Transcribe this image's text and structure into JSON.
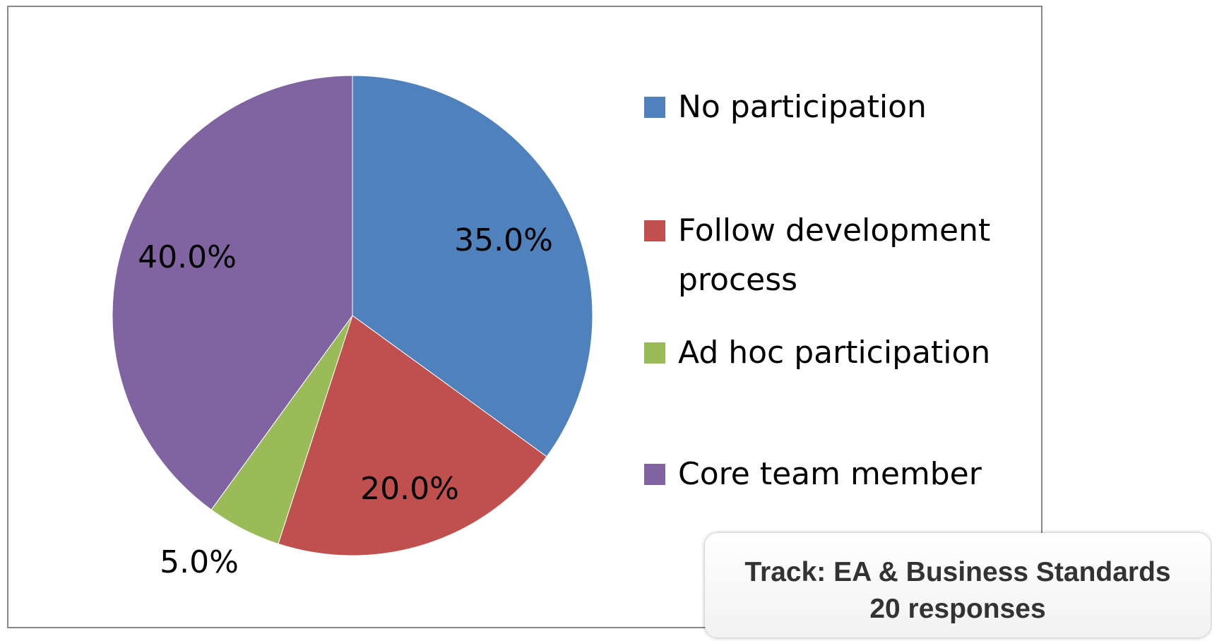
{
  "chart_data": {
    "type": "pie",
    "categories": [
      "No participation",
      "Follow development process",
      "Ad hoc participation",
      "Core team member"
    ],
    "values": [
      35,
      20,
      5,
      40
    ],
    "value_labels": [
      "35.0%",
      "20.0%",
      "5.0%",
      "40.0%"
    ],
    "colors": [
      "#4f81bd",
      "#c0504d",
      "#9bbb59",
      "#8064a2"
    ],
    "legend": "right",
    "annotations": [
      "Track: EA & Business Standards",
      "20 responses"
    ]
  }
}
